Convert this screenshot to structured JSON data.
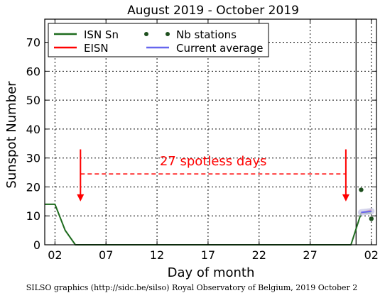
{
  "chart_data": {
    "type": "line",
    "title": "August 2019 - October 2019",
    "xlabel": "Day of month",
    "ylabel": "Sunspot Number",
    "ylim": [
      0,
      78
    ],
    "yticks": [
      0,
      10,
      20,
      30,
      40,
      50,
      60,
      70
    ],
    "xrange_days": [
      0,
      32.5
    ],
    "xticks": [
      {
        "day": 1,
        "label": "02"
      },
      {
        "day": 6,
        "label": "07"
      },
      {
        "day": 11,
        "label": "12"
      },
      {
        "day": 16,
        "label": "17"
      },
      {
        "day": 21,
        "label": "22"
      },
      {
        "day": 26,
        "label": "27"
      },
      {
        "day": 32,
        "label": "02"
      }
    ],
    "grid": true,
    "legend_position": "top-left",
    "legend": {
      "isn": "ISN Sn",
      "eisn": "EISN",
      "stations": "Nb stations",
      "average": "Current average"
    },
    "series": [
      {
        "key": "isn",
        "name": "ISN Sn",
        "color": "#1e6b1e",
        "points": [
          [
            0,
            14
          ],
          [
            1,
            14
          ],
          [
            2,
            5
          ],
          [
            3,
            0
          ],
          [
            4,
            0
          ],
          [
            29,
            0
          ],
          [
            30,
            0
          ],
          [
            31,
            11
          ],
          [
            32,
            11
          ]
        ]
      },
      {
        "key": "eisn",
        "name": "EISN",
        "color": "#ff0000",
        "points": [
          [
            31,
            11
          ],
          [
            31.5,
            11.5
          ],
          [
            32,
            12
          ]
        ]
      },
      {
        "key": "average",
        "name": "Current average",
        "color": "#6666ee",
        "points": [
          [
            31,
            11.2
          ],
          [
            32,
            11.6
          ]
        ]
      },
      {
        "key": "stations",
        "name": "Nb stations",
        "color": "#1e4f1e",
        "style": "dots",
        "points": [
          [
            31,
            19
          ],
          [
            32,
            9
          ]
        ]
      }
    ],
    "month_boundary_day": 30.5,
    "annotation": {
      "text": "27 spotless days",
      "color": "#ff0000",
      "span_days": [
        3.5,
        29.5
      ],
      "y": 24.5,
      "arrow_from_y": 33,
      "arrow_to_y": 15
    }
  },
  "footer": "SILSO graphics (http://sidc.be/silso) Royal Observatory of Belgium, 2019 October 2"
}
